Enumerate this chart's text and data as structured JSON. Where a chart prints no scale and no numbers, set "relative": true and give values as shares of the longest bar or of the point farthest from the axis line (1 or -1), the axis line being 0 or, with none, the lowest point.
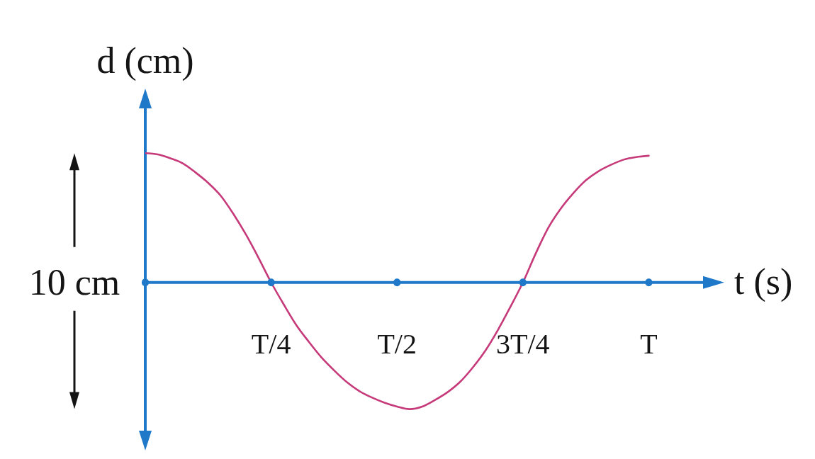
{
  "chart_data": {
    "type": "line",
    "xlabel": "t (s)",
    "ylabel": "d (cm)",
    "annotations": [
      "10 cm"
    ],
    "relative": true,
    "categories": [
      null,
      null,
      null,
      null,
      null,
      null,
      null,
      null,
      null,
      null,
      "T/4",
      null,
      null,
      null,
      null,
      null,
      null,
      null,
      null,
      null,
      "T/2",
      null,
      null,
      null,
      null,
      null,
      null,
      null,
      null,
      null,
      "3T/4",
      null,
      null,
      null,
      null,
      null,
      null,
      null,
      null,
      null,
      "T"
    ],
    "series": [
      {
        "color": "#c63a7a",
        "values": [
          1,
          0.99,
          0.96,
          0.92,
          0.85,
          0.77,
          0.67,
          0.53,
          0.37,
          0.19,
          0,
          -0.17,
          -0.33,
          -0.46,
          -0.58,
          -0.68,
          -0.77,
          -0.84,
          -0.89,
          -0.93,
          -0.96,
          -0.98,
          -0.96,
          -0.91,
          -0.85,
          -0.77,
          -0.66,
          -0.53,
          -0.37,
          -0.19,
          0,
          0.22,
          0.42,
          0.57,
          0.69,
          0.79,
          0.86,
          0.91,
          0.95,
          0.97,
          0.98
        ]
      }
    ],
    "marker": "none",
    "line_style": "solid"
  }
}
